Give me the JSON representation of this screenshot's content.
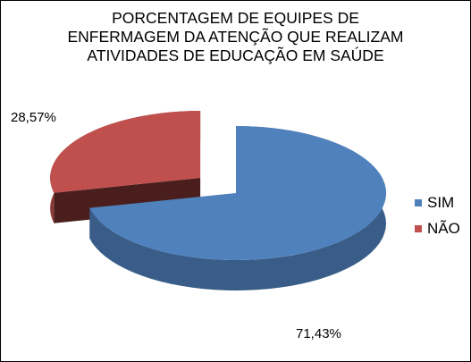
{
  "chart_data": {
    "type": "pie",
    "title_lines": [
      "PORCENTAGEM DE EQUIPES DE",
      "ENFERMAGEM DA ATENÇÃO QUE REALIZAM",
      "ATIVIDADES  DE EDUCAÇÃO EM SAÚDE"
    ],
    "categories": [
      "SIM",
      "NÃO"
    ],
    "values": [
      71.43,
      28.57
    ],
    "data_labels": [
      "71,43%",
      "28,57%"
    ],
    "colors": [
      "#4F81BD",
      "#C0504D"
    ],
    "exploded_slice": "NÃO",
    "three_d": true,
    "legend_position": "right"
  }
}
